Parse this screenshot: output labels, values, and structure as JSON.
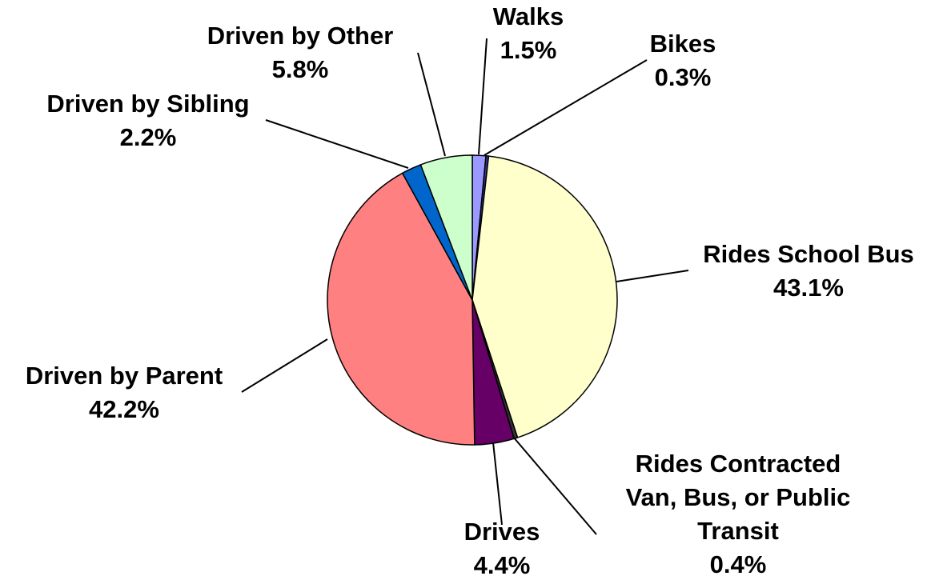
{
  "chart_data": {
    "type": "pie",
    "categories": [
      "Walks",
      "Bikes",
      "Rides School Bus",
      "Rides Contracted Van, Bus, or Public Transit",
      "Drives",
      "Driven by Parent",
      "Driven by Sibling",
      "Driven by Other"
    ],
    "values": [
      1.5,
      0.3,
      43.1,
      0.4,
      4.4,
      42.2,
      2.2,
      5.8
    ],
    "value_labels": [
      "1.5%",
      "0.3%",
      "43.1%",
      "0.4%",
      "4.4%",
      "42.2%",
      "2.2%",
      "5.8%"
    ],
    "colors": [
      "#9999ff",
      "#333399",
      "#ffffcc",
      "#333333",
      "#660066",
      "#ff8080",
      "#0066cc",
      "#ccffcc"
    ]
  }
}
